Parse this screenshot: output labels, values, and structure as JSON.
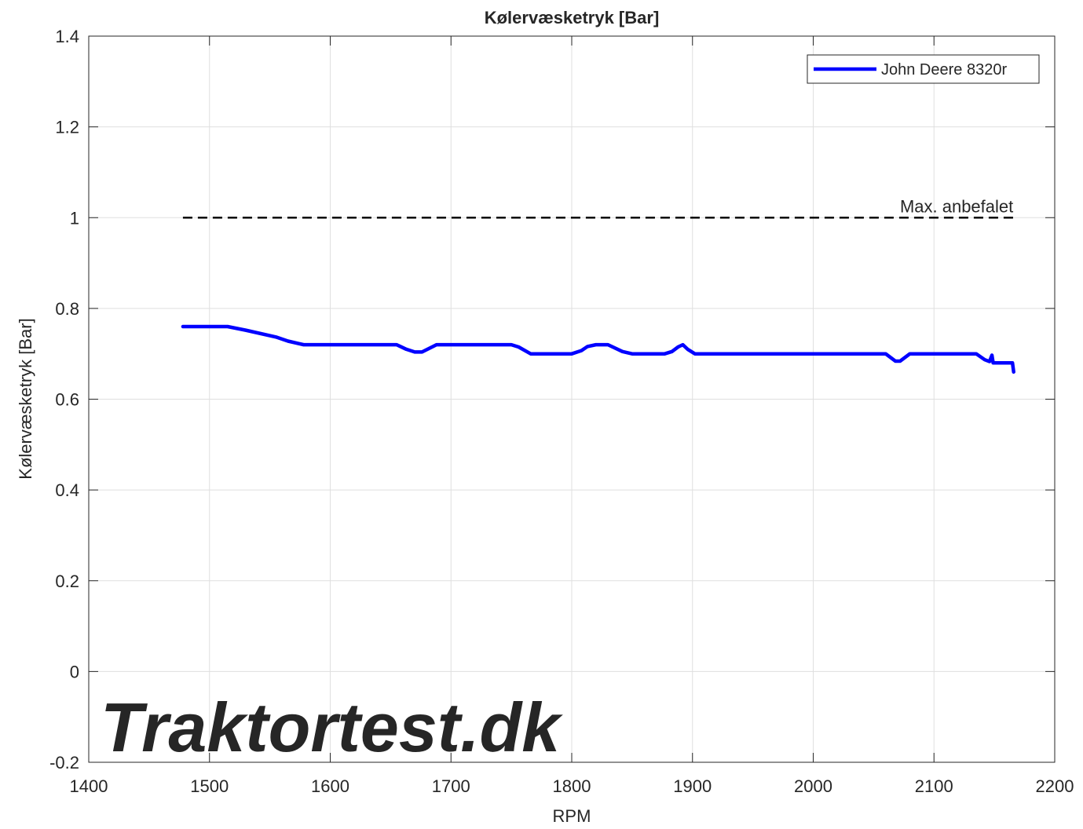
{
  "chart_data": {
    "type": "line",
    "title": "Kølervæsketryk [Bar]",
    "xlabel": "RPM",
    "ylabel": "Kølervæsketryk [Bar]",
    "watermark": "Traktortest.dk",
    "xlim": [
      1400,
      2200
    ],
    "xticks": [
      1400,
      1500,
      1600,
      1700,
      1800,
      1900,
      2000,
      2100,
      2200
    ],
    "ylim": [
      -0.2,
      1.4
    ],
    "yticks": [
      -0.2,
      0,
      0.2,
      0.4,
      0.6,
      0.8,
      1,
      1.2,
      1.4
    ],
    "grid": true,
    "legend": "top-right",
    "reference_line": {
      "y": 1,
      "xrange": [
        1478,
        2167
      ],
      "label": "Max. anbefalet",
      "color": "#000000"
    },
    "x": [
      1478,
      1515,
      1530,
      1555,
      1565,
      1578,
      1655,
      1663,
      1670,
      1676,
      1688,
      1750,
      1756,
      1766,
      1800,
      1808,
      1813,
      1820,
      1830,
      1842,
      1850,
      1877,
      1883,
      1888,
      1892,
      1896,
      1902,
      2060,
      2068,
      2072,
      2080,
      2135,
      2142,
      2146,
      2148,
      2149,
      2165,
      2166
    ],
    "series": [
      {
        "name": "John Deere 8320r",
        "color": "#0000ff",
        "values": [
          0.76,
          0.76,
          0.752,
          0.737,
          0.728,
          0.72,
          0.72,
          0.71,
          0.704,
          0.704,
          0.72,
          0.72,
          0.715,
          0.7,
          0.7,
          0.707,
          0.716,
          0.72,
          0.72,
          0.705,
          0.7,
          0.7,
          0.705,
          0.715,
          0.72,
          0.71,
          0.7,
          0.7,
          0.684,
          0.684,
          0.7,
          0.7,
          0.687,
          0.683,
          0.697,
          0.68,
          0.68,
          0.66
        ]
      }
    ]
  }
}
